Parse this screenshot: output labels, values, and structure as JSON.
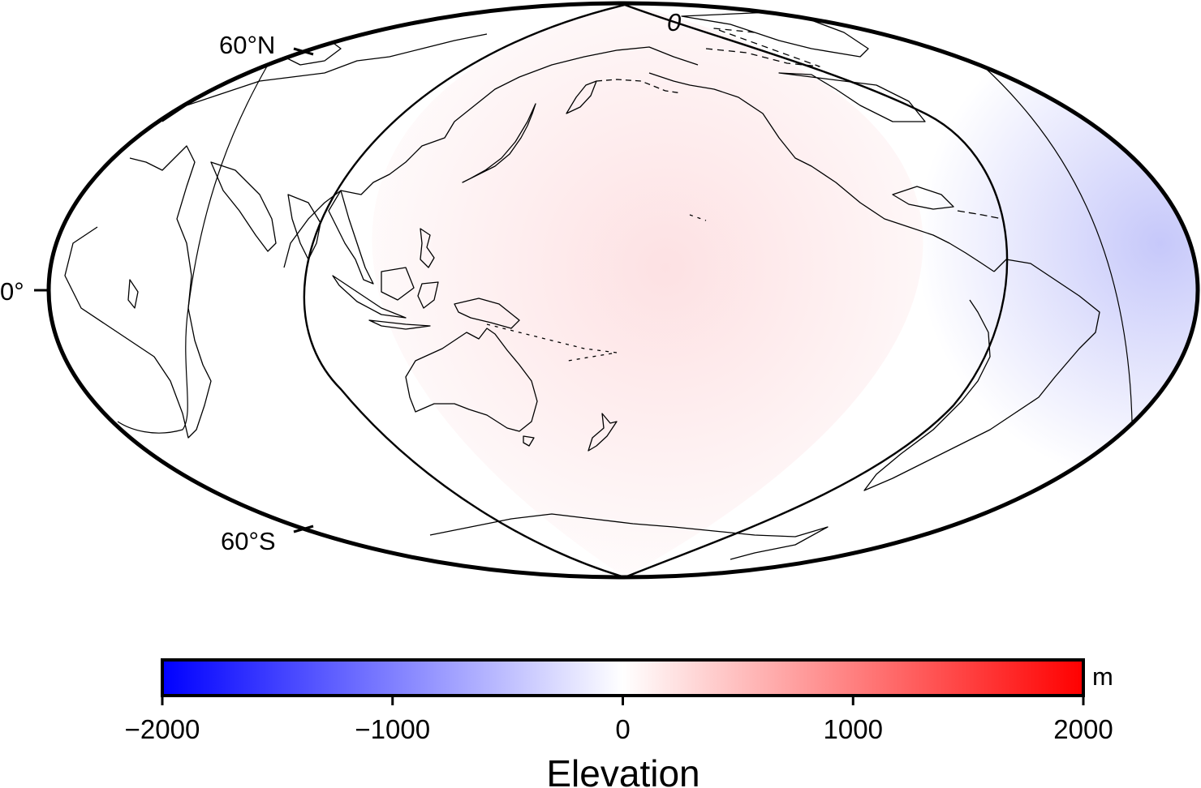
{
  "map": {
    "projection": "Hammer (Pacific-centered)",
    "lat_labels": {
      "north": "60°N",
      "equator": "0°",
      "south": "60°S"
    },
    "contour_label": "0",
    "colors": {
      "positive_peak": "#ff0000",
      "negative_peak": "#0000ff",
      "zero": "#ffffff",
      "coastline": "#000000"
    }
  },
  "colorbar": {
    "title": "Elevation",
    "unit": "m",
    "colormap": "polar (blue-white-red)",
    "range": [
      -2000,
      2000
    ],
    "ticks": [
      {
        "value": -2000,
        "label": "−2000"
      },
      {
        "value": -1000,
        "label": "−1000"
      },
      {
        "value": 0,
        "label": "0"
      },
      {
        "value": 1000,
        "label": "1000"
      },
      {
        "value": 2000,
        "label": "2000"
      }
    ]
  }
}
